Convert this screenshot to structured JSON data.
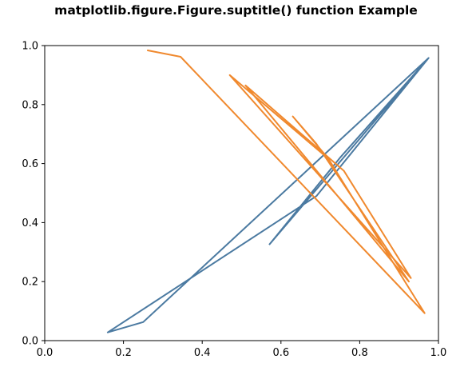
{
  "chart_data": {
    "type": "line",
    "title": "matplotlib.figure.Figure.suptitle() function Example",
    "xlabel": "",
    "ylabel": "",
    "xlim": [
      0.0,
      1.0
    ],
    "ylim": [
      0.0,
      1.0
    ],
    "grid": false,
    "x_ticks": [
      "0.0",
      "0.2",
      "0.4",
      "0.6",
      "0.8",
      "1.0"
    ],
    "y_ticks": [
      "0.0",
      "0.2",
      "0.4",
      "0.6",
      "0.8",
      "1.0"
    ],
    "series": [
      {
        "color": "#4b7aa1",
        "points": [
          [
            0.57,
            0.325
          ],
          [
            0.75,
            0.62
          ],
          [
            0.975,
            0.958
          ],
          [
            0.69,
            0.49
          ],
          [
            0.16,
            0.028
          ],
          [
            0.25,
            0.063
          ],
          [
            0.975,
            0.958
          ],
          [
            0.57,
            0.325
          ]
        ]
      },
      {
        "color": "#f0892e",
        "points": [
          [
            0.26,
            0.984
          ],
          [
            0.345,
            0.962
          ],
          [
            0.965,
            0.093
          ],
          [
            0.72,
            0.617
          ],
          [
            0.63,
            0.76
          ],
          [
            0.69,
            0.667
          ],
          [
            0.925,
            0.2
          ],
          [
            0.51,
            0.865
          ],
          [
            0.76,
            0.575
          ],
          [
            0.93,
            0.212
          ],
          [
            0.47,
            0.9
          ],
          [
            0.72,
            0.617
          ]
        ]
      }
    ]
  }
}
